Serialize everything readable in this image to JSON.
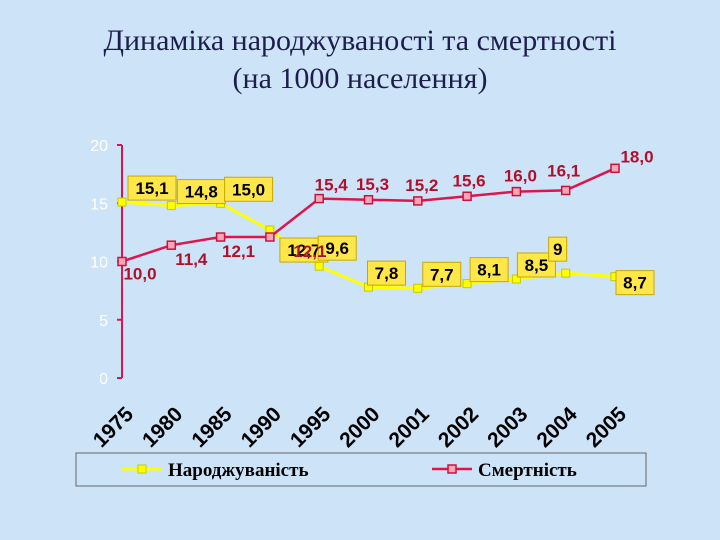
{
  "title_line1": "Динаміка народжуваності та смертності",
  "title_line2": "(на 1000 населення)",
  "chart_data": {
    "type": "line",
    "categories": [
      "1975",
      "1980",
      "1985",
      "1990",
      "1995",
      "2000",
      "2001",
      "2002",
      "2003",
      "2004",
      "2005"
    ],
    "y_ticks": [
      "0",
      "5",
      "10",
      "15",
      "20"
    ],
    "ylim": [
      0,
      20
    ],
    "grid": false,
    "legend_position": "bottom",
    "series": [
      {
        "name": "Народжуваність",
        "color": "#ffff00",
        "marker": "square",
        "values": [
          15.1,
          14.8,
          15.0,
          12.7,
          9.6,
          7.8,
          7.7,
          8.1,
          8.5,
          9.0,
          8.7
        ],
        "labels": [
          "15,1",
          "14,8",
          "15,0",
          "12,7",
          "9,6",
          "7,8",
          "7,7",
          "8,1",
          "8,5",
          "9",
          "8,7"
        ]
      },
      {
        "name": "Смертність",
        "color": "#e0144c",
        "marker": "square",
        "values": [
          10.0,
          11.4,
          12.1,
          12.1,
          15.4,
          15.3,
          15.2,
          15.6,
          16.0,
          16.1,
          18.0
        ],
        "labels": [
          "10,0",
          "11,4",
          "12,1",
          "12,1",
          "15,4",
          "15,3",
          "15,2",
          "15,6",
          "16,0",
          "16,1",
          "18,0"
        ]
      }
    ]
  }
}
